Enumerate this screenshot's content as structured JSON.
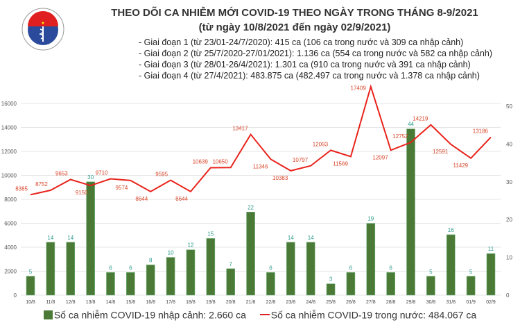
{
  "header": {
    "logo_text": "BỘ Y TẾ - MINISTRY OF HEALTH",
    "title": "THEO DÕI CA NHIỄM MỚI COVID-19 THEO NGÀY TRONG THÁNG 8-9/2021",
    "subtitle": "(từ ngày 10/8/2021 đến ngày 02/9/2021)",
    "phases": [
      "- Giai đoạn 1 (từ 23/01-24/7/2020): 415 ca (106 ca trong nước và 309 ca nhập cảnh)",
      "- Giai đoạn 2 (từ 25/7/2020-27/01/2021): 1.136 ca (554 ca trong nước và 582 ca nhập cảnh)",
      "- Giai đoạn 3 (từ 28/01-26/4/2021): 1.301 ca (910 ca trong nước và 391 ca nhập cảnh)",
      "- Giai đoạn 4 (từ 27/4/2021): 483.875 ca (482.497 ca trong nước và 1.378 ca nhập cảnh)"
    ]
  },
  "chart_data": {
    "type": "bar+line",
    "categories": [
      "10/8",
      "11/8",
      "12/8",
      "13/8",
      "14/8",
      "15/8",
      "16/8",
      "17/8",
      "18/8",
      "19/8",
      "20/8",
      "21/8",
      "22/8",
      "23/8",
      "24/8",
      "25/8",
      "26/8",
      "27/8",
      "28/8",
      "29/8",
      "30/8",
      "31/8",
      "01/9",
      "02/9"
    ],
    "series": [
      {
        "name": "Số ca nhiễm COVID-19 nhập cảnh: 2.660 ca",
        "type": "bar",
        "axis": "right",
        "color": "#4a7a35",
        "values": [
          5,
          14,
          14,
          30,
          6,
          6,
          8,
          10,
          12,
          15,
          7,
          22,
          6,
          14,
          14,
          3,
          6,
          19,
          6,
          44,
          5,
          16,
          5,
          11
        ]
      },
      {
        "name": "Số ca nhiễm COVID-19 trong nước: 484.067 ca",
        "type": "line",
        "axis": "left",
        "color": "#e8231b",
        "values": [
          8385,
          8752,
          9653,
          9150,
          9710,
          9574,
          8644,
          9595,
          8644,
          10639,
          10650,
          13417,
          11346,
          10383,
          10797,
          12093,
          11569,
          17409,
          12097,
          12752,
          14219,
          12591,
          11429,
          13186
        ]
      }
    ],
    "left_axis": {
      "ylim": [
        0,
        16000
      ],
      "ticks": [
        "0",
        "2000",
        "4000",
        "6000",
        "8000",
        "10000",
        "12000",
        "14000",
        "16000"
      ]
    },
    "right_axis": {
      "ylim": [
        0,
        50
      ],
      "ticks": [
        "0",
        "10",
        "20",
        "30",
        "40",
        "50"
      ]
    },
    "grid": true,
    "legend": "bottom"
  }
}
